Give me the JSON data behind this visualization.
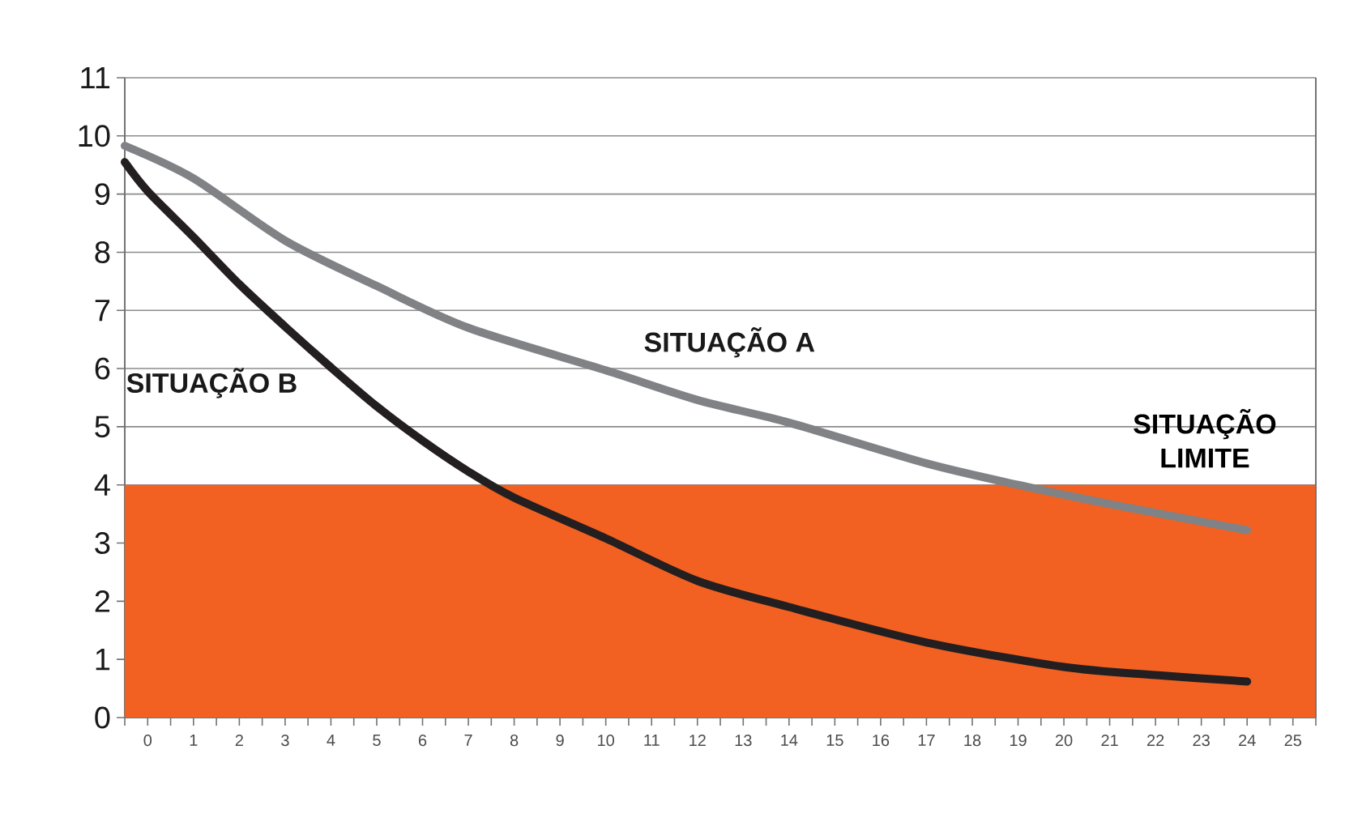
{
  "chart_data": {
    "type": "line",
    "xlim": [
      -0.5,
      25.5
    ],
    "xticks": [
      {
        "value": -0.5,
        "label": null
      },
      0,
      {
        "value": 0.5,
        "label": null
      },
      1,
      {
        "value": 1.5,
        "label": null
      },
      2,
      {
        "value": 2.5,
        "label": null
      },
      3,
      {
        "value": 3.5,
        "label": null
      },
      4,
      {
        "value": 4.5,
        "label": null
      },
      5,
      {
        "value": 5.5,
        "label": null
      },
      6,
      {
        "value": 6.5,
        "label": null
      },
      7,
      {
        "value": 7.5,
        "label": null
      },
      8,
      {
        "value": 8.5,
        "label": null
      },
      9,
      {
        "value": 9.5,
        "label": null
      },
      10,
      {
        "value": 10.5,
        "label": null
      },
      11,
      {
        "value": 11.5,
        "label": null
      },
      12,
      {
        "value": 12.5,
        "label": null
      },
      13,
      {
        "value": 13.5,
        "label": null
      },
      14,
      {
        "value": 14.5,
        "label": null
      },
      15,
      {
        "value": 15.5,
        "label": null
      },
      16,
      {
        "value": 16.5,
        "label": null
      },
      17,
      {
        "value": 17.5,
        "label": null
      },
      18,
      {
        "value": 18.5,
        "label": null
      },
      19,
      {
        "value": 19.5,
        "label": null
      },
      20,
      {
        "value": 20.5,
        "label": null
      },
      21,
      {
        "value": 21.5,
        "label": null
      },
      22,
      {
        "value": 22.5,
        "label": null
      },
      23,
      {
        "value": 23.5,
        "label": null
      },
      24,
      {
        "value": 24.5,
        "label": null
      },
      25,
      {
        "value": 25.5,
        "label": null
      }
    ],
    "ylim": [
      0,
      11
    ],
    "yticks": [
      0,
      1,
      2,
      3,
      4,
      5,
      6,
      7,
      8,
      9,
      10,
      11
    ],
    "grid": "y",
    "series": [
      {
        "name": "SITUAÇÃO A",
        "color": "#808285",
        "x": [
          -0.5,
          1,
          3,
          5,
          7,
          10,
          12,
          14,
          17,
          19,
          21,
          24
        ],
        "values": [
          9.83,
          9.27,
          8.2,
          7.42,
          6.7,
          5.97,
          5.46,
          5.07,
          4.37,
          4.0,
          3.67,
          3.22
        ]
      },
      {
        "name": "SITUAÇÃO B",
        "color": "#231f20",
        "x": [
          -0.5,
          0,
          1,
          2,
          3,
          4,
          5,
          6,
          7,
          8,
          10,
          12,
          14,
          17,
          20,
          22,
          24
        ],
        "values": [
          9.55,
          9.05,
          8.26,
          7.45,
          6.72,
          6.02,
          5.35,
          4.76,
          4.23,
          3.78,
          3.08,
          2.35,
          1.9,
          1.29,
          0.87,
          0.73,
          0.62
        ]
      }
    ],
    "bands": [
      {
        "axis": "y",
        "from": 0,
        "to": 4,
        "label": "SITUAÇÃO LIMITE",
        "color": "#f26122"
      }
    ]
  }
}
